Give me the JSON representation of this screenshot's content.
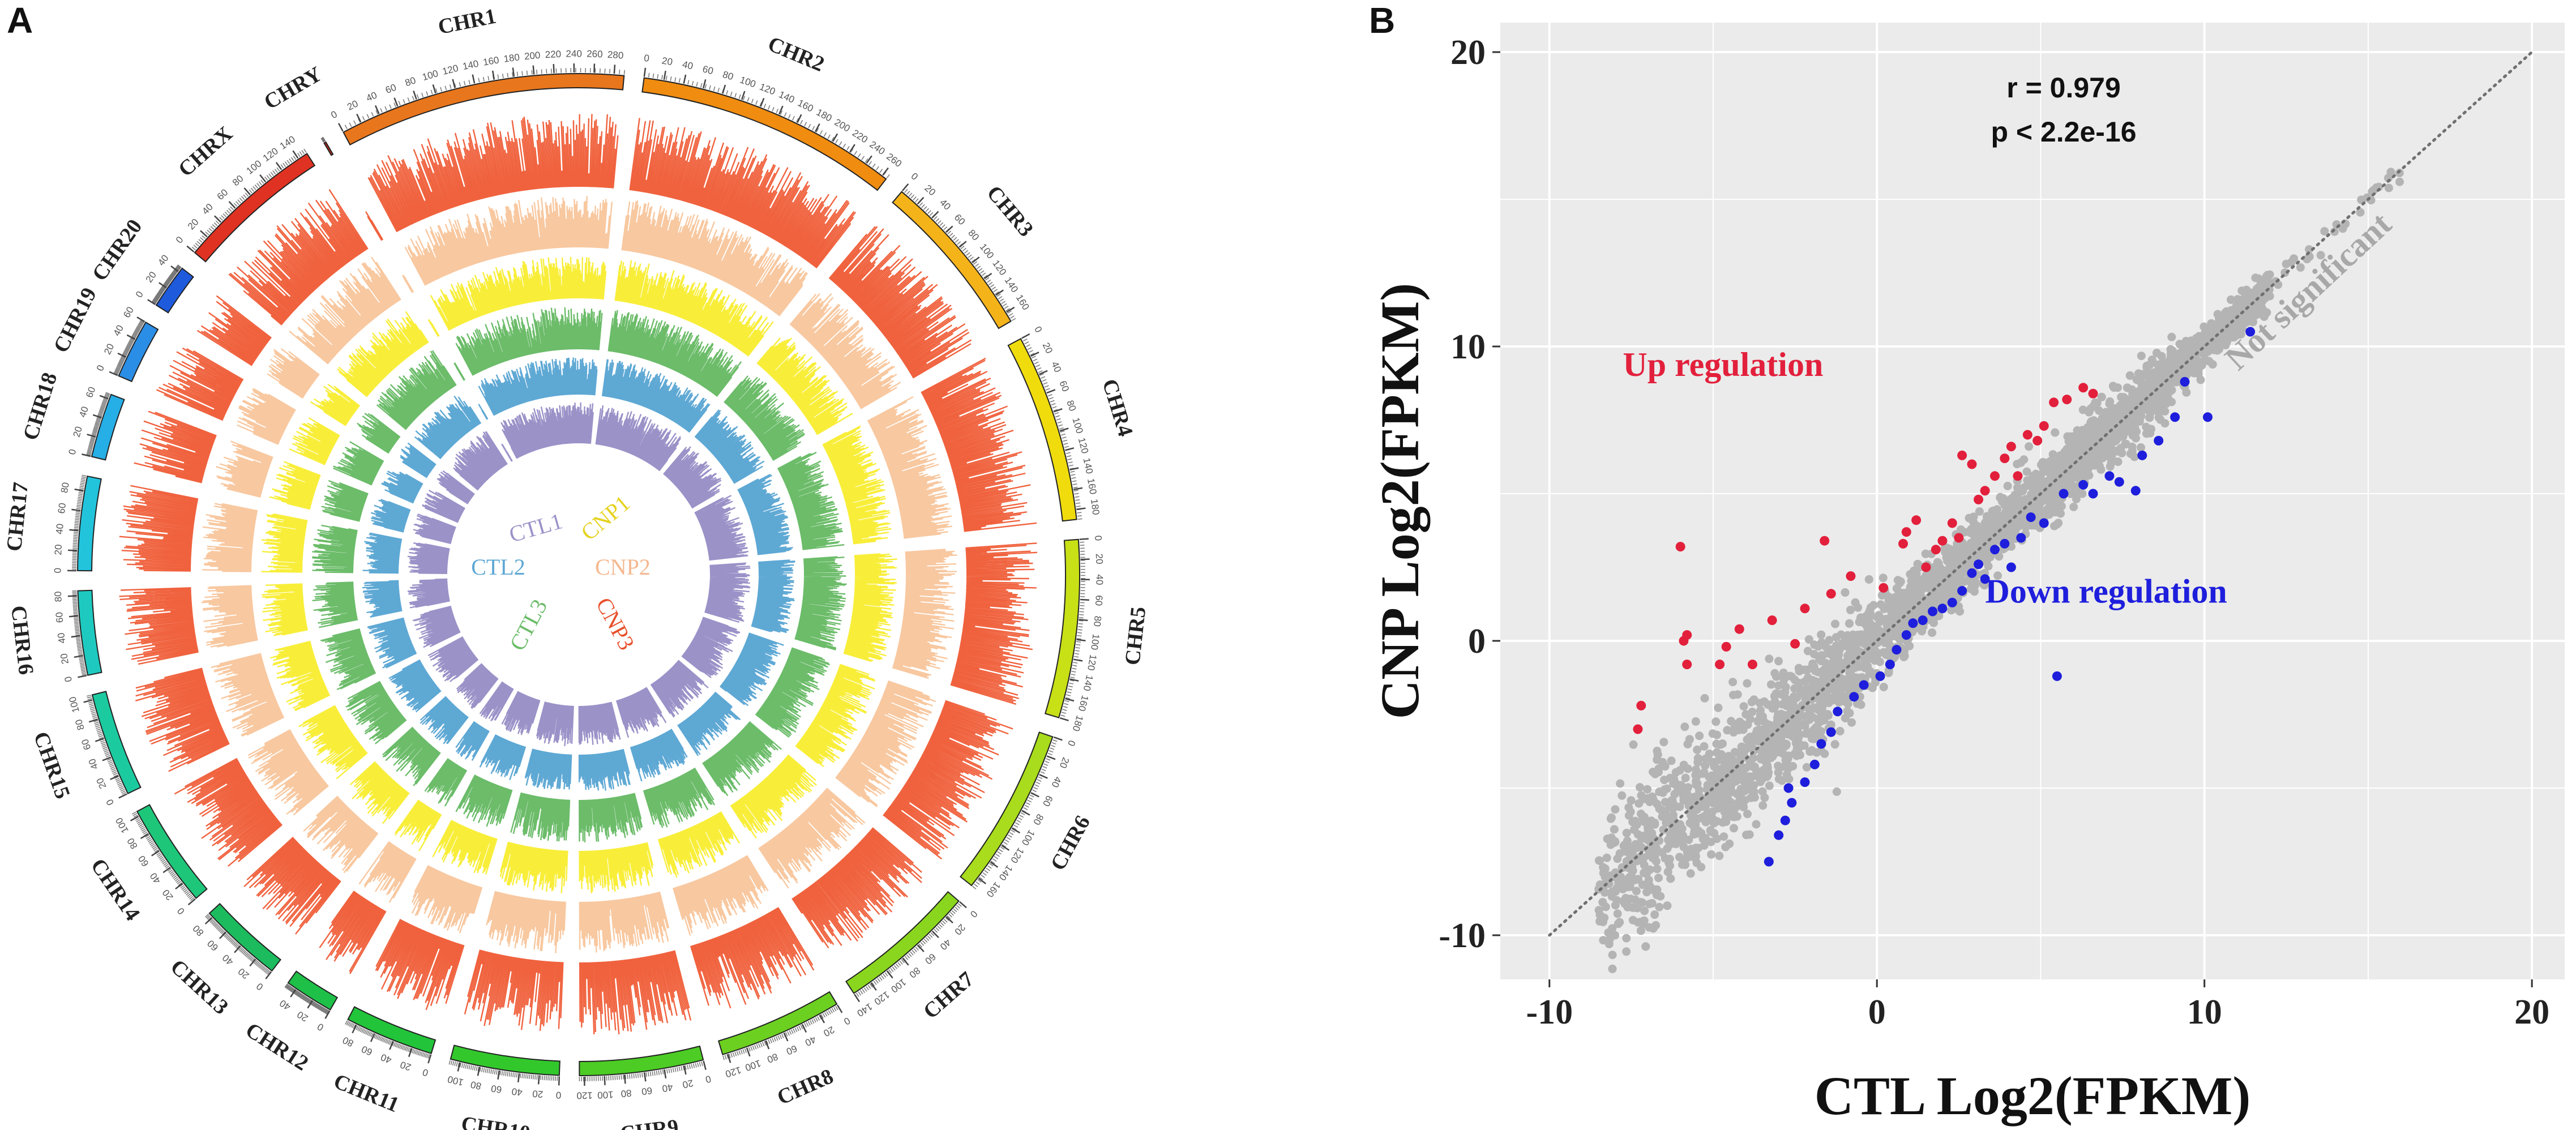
{
  "figure": {
    "panel_a_label": "A",
    "panel_b_label": "B"
  },
  "chart_data": [
    {
      "type": "circos",
      "panel": "A",
      "chromosomes": [
        {
          "name": "CHR1",
          "length": 290,
          "ticks": [
            0,
            20,
            40,
            60,
            80,
            100,
            120,
            140,
            160,
            180,
            200,
            220,
            240,
            260,
            280
          ],
          "color": "#e8761c"
        },
        {
          "name": "CHR2",
          "length": 265,
          "ticks": [
            0,
            20,
            40,
            60,
            80,
            100,
            120,
            140,
            160,
            180,
            200,
            220,
            240,
            260
          ],
          "color": "#f08c10"
        },
        {
          "name": "CHR3",
          "length": 170,
          "ticks": [
            0,
            20,
            40,
            60,
            80,
            100,
            120,
            140,
            160
          ],
          "color": "#f5b31a"
        },
        {
          "name": "CHR4",
          "length": 190,
          "ticks": [
            0,
            20,
            40,
            60,
            80,
            100,
            120,
            140,
            160,
            180
          ],
          "color": "#f0dc0c"
        },
        {
          "name": "CHR5",
          "length": 180,
          "ticks": [
            0,
            20,
            40,
            60,
            80,
            100,
            120,
            140,
            160,
            180
          ],
          "color": "#c8e016"
        },
        {
          "name": "CHR6",
          "length": 170,
          "ticks": [
            0,
            20,
            40,
            60,
            80,
            100,
            120,
            140,
            160
          ],
          "color": "#a8dc1c"
        },
        {
          "name": "CHR7",
          "length": 140,
          "ticks": [
            0,
            20,
            40,
            60,
            80,
            100,
            120,
            140
          ],
          "color": "#8ad61e"
        },
        {
          "name": "CHR8",
          "length": 125,
          "ticks": [
            0,
            20,
            40,
            60,
            80,
            100,
            120
          ],
          "color": "#6cd020"
        },
        {
          "name": "CHR9",
          "length": 125,
          "ticks": [
            0,
            20,
            40,
            60,
            80,
            100,
            120
          ],
          "color": "#4ccc24"
        },
        {
          "name": "CHR10",
          "length": 110,
          "ticks": [
            0,
            20,
            40,
            60,
            80,
            100
          ],
          "color": "#32c82c"
        },
        {
          "name": "CHR11",
          "length": 90,
          "ticks": [
            0,
            20,
            40,
            60,
            80
          ],
          "color": "#22c43a"
        },
        {
          "name": "CHR12",
          "length": 50,
          "ticks": [
            0,
            20,
            40
          ],
          "color": "#1ec048"
        },
        {
          "name": "CHR13",
          "length": 85,
          "ticks": [
            0,
            20,
            40,
            60,
            80
          ],
          "color": "#1cbc5e"
        },
        {
          "name": "CHR14",
          "length": 105,
          "ticks": [
            0,
            20,
            40,
            60,
            80,
            100
          ],
          "color": "#1ec67a"
        },
        {
          "name": "CHR15",
          "length": 105,
          "ticks": [
            0,
            20,
            40,
            60,
            80,
            100
          ],
          "color": "#1ccaa0"
        },
        {
          "name": "CHR16",
          "length": 85,
          "ticks": [
            0,
            20,
            40,
            60,
            80
          ],
          "color": "#1ecac0"
        },
        {
          "name": "CHR17",
          "length": 95,
          "ticks": [
            0,
            20,
            40,
            60,
            80
          ],
          "color": "#22c4dc"
        },
        {
          "name": "CHR18",
          "length": 65,
          "ticks": [
            0,
            20,
            40,
            60
          ],
          "color": "#26aee6"
        },
        {
          "name": "CHR19",
          "length": 60,
          "ticks": [
            0,
            20,
            40,
            60
          ],
          "color": "#2a8ee6"
        },
        {
          "name": "CHR20",
          "length": 45,
          "ticks": [
            0,
            20,
            40
          ],
          "color": "#1e5adc"
        },
        {
          "name": "CHRX",
          "length": 150,
          "ticks": [
            0,
            20,
            40,
            60,
            80,
            100,
            120,
            140
          ],
          "color": "#e03222"
        },
        {
          "name": "CHRY",
          "length": 2,
          "ticks": [],
          "color": "#c42a1a"
        }
      ],
      "tracks": [
        {
          "name": "CNP3",
          "color": "#f0623e"
        },
        {
          "name": "CNP2",
          "color": "#f8c8a0"
        },
        {
          "name": "CNP1",
          "color": "#f8ee3a"
        },
        {
          "name": "CTL3",
          "color": "#6cbc6a"
        },
        {
          "name": "CTL2",
          "color": "#5ea8d4"
        },
        {
          "name": "CTL1",
          "color": "#9b92c8"
        }
      ],
      "legend_left": [
        "CTL1",
        "CTL2",
        "CTL3"
      ],
      "legend_right": [
        "CNP1",
        "CNP2",
        "CNP3"
      ]
    },
    {
      "type": "scatter",
      "panel": "B",
      "xlabel": "CTL Log2(FPKM)",
      "ylabel": "CNP Log2(FPKM)",
      "xlim": [
        -11.5,
        21
      ],
      "ylim": [
        -11.5,
        21
      ],
      "xticks": [
        -10,
        0,
        10,
        20
      ],
      "yticks": [
        -10,
        0,
        10,
        20
      ],
      "stats": {
        "r": "r =  0.979",
        "p": "p < 2.2e-16"
      },
      "reference_line": {
        "x": [
          -10,
          20
        ],
        "y": [
          -10,
          20
        ]
      },
      "grid": true,
      "series": [
        {
          "name": "Up regulation",
          "color": "#e2203c",
          "points": [
            [
              -7.2,
              -2.2
            ],
            [
              -7.3,
              -3.0
            ],
            [
              -6.0,
              3.2
            ],
            [
              -5.8,
              0.2
            ],
            [
              -5.9,
              0.0
            ],
            [
              -5.8,
              -0.8
            ],
            [
              -4.8,
              -0.8
            ],
            [
              -4.6,
              -0.2
            ],
            [
              -4.2,
              0.4
            ],
            [
              -3.8,
              -0.8
            ],
            [
              -3.2,
              0.7
            ],
            [
              -2.5,
              -0.1
            ],
            [
              -2.2,
              1.1
            ],
            [
              -1.6,
              3.4
            ],
            [
              -1.4,
              1.6
            ],
            [
              -0.8,
              2.2
            ],
            [
              0.2,
              1.8
            ],
            [
              0.8,
              3.3
            ],
            [
              0.9,
              3.7
            ],
            [
              1.2,
              4.1
            ],
            [
              1.5,
              2.5
            ],
            [
              1.8,
              3.1
            ],
            [
              2.0,
              3.4
            ],
            [
              2.3,
              4.0
            ],
            [
              2.5,
              3.5
            ],
            [
              2.6,
              6.3
            ],
            [
              2.9,
              6.0
            ],
            [
              3.1,
              4.8
            ],
            [
              3.3,
              5.1
            ],
            [
              3.6,
              5.6
            ],
            [
              3.9,
              6.2
            ],
            [
              4.1,
              6.6
            ],
            [
              4.3,
              5.6
            ],
            [
              4.6,
              7.0
            ],
            [
              4.9,
              6.8
            ],
            [
              5.1,
              7.3
            ],
            [
              5.4,
              8.1
            ],
            [
              5.8,
              8.2
            ],
            [
              6.3,
              8.6
            ],
            [
              6.6,
              8.4
            ]
          ],
          "label_position": [
            -4.7,
            9.0
          ]
        },
        {
          "name": "Down regulation",
          "color": "#1e1edc",
          "points": [
            [
              -3.3,
              -7.5
            ],
            [
              -3.0,
              -6.6
            ],
            [
              -2.8,
              -6.1
            ],
            [
              -2.6,
              -5.5
            ],
            [
              -2.7,
              -5.0
            ],
            [
              -2.2,
              -4.8
            ],
            [
              -1.9,
              -4.2
            ],
            [
              -1.7,
              -3.5
            ],
            [
              -1.4,
              -3.1
            ],
            [
              -1.2,
              -2.4
            ],
            [
              -0.7,
              -1.9
            ],
            [
              -0.4,
              -1.5
            ],
            [
              0.1,
              -1.2
            ],
            [
              0.4,
              -0.8
            ],
            [
              0.6,
              -0.3
            ],
            [
              0.9,
              0.2
            ],
            [
              1.1,
              0.6
            ],
            [
              1.4,
              0.7
            ],
            [
              1.7,
              1.0
            ],
            [
              2.0,
              1.1
            ],
            [
              2.3,
              1.3
            ],
            [
              2.6,
              1.7
            ],
            [
              2.9,
              2.3
            ],
            [
              3.1,
              2.6
            ],
            [
              3.3,
              2.1
            ],
            [
              3.6,
              3.1
            ],
            [
              3.9,
              3.3
            ],
            [
              4.1,
              2.5
            ],
            [
              4.4,
              3.5
            ],
            [
              4.7,
              4.2
            ],
            [
              5.1,
              4.0
            ],
            [
              5.5,
              -1.2
            ],
            [
              5.7,
              5.0
            ],
            [
              6.3,
              5.3
            ],
            [
              6.6,
              5.0
            ],
            [
              7.1,
              5.6
            ],
            [
              7.4,
              5.4
            ],
            [
              7.9,
              5.1
            ],
            [
              8.1,
              6.3
            ],
            [
              8.6,
              6.8
            ],
            [
              9.1,
              7.6
            ],
            [
              9.4,
              8.8
            ],
            [
              10.1,
              7.6
            ],
            [
              11.4,
              10.5
            ]
          ],
          "label_position": [
            7.0,
            1.3
          ]
        },
        {
          "name": "Not significant",
          "color": "#b4b4b4",
          "description": "dense cloud of several thousand genes hugging the y = x line from about (-8,-8) to (12,12), plus sparse points up to (16,16)",
          "label_position": [
            13.4,
            11.6
          ],
          "label_rotation_deg": -43
        }
      ]
    }
  ]
}
